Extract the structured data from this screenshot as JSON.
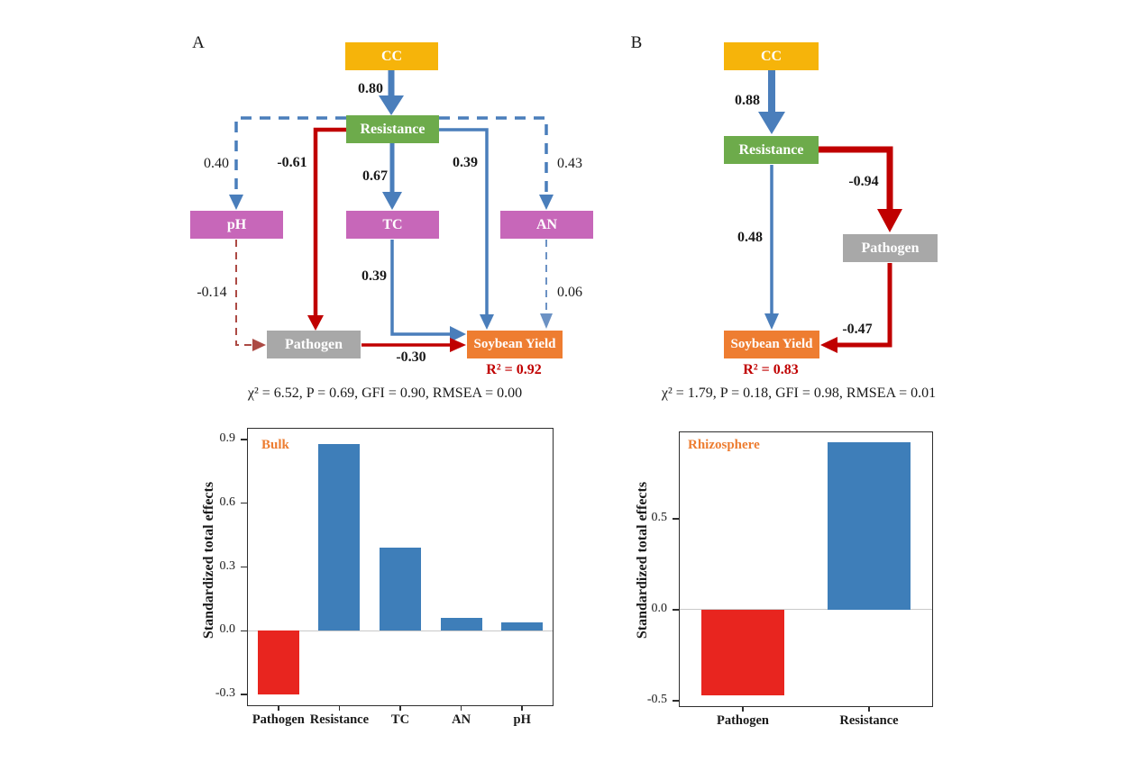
{
  "panelA": {
    "label": "A",
    "nodes": {
      "cc": "CC",
      "resistance": "Resistance",
      "ph": "pH",
      "tc": "TC",
      "an": "AN",
      "pathogen": "Pathogen",
      "soybean_yield": "Soybean Yield"
    },
    "edges": {
      "cc_resistance": "0.80",
      "resistance_ph": "0.40",
      "resistance_pathogen": "-0.61",
      "resistance_tc": "0.67",
      "resistance_soybean": "0.39",
      "resistance_an": "0.43",
      "ph_pathogen": "-0.14",
      "tc_soybean": "0.39",
      "an_soybean": "0.06",
      "pathogen_soybean": "-0.30"
    },
    "r2": "R² = 0.92",
    "fit": "χ² = 6.52,  P = 0.69, GFI = 0.90, RMSEA = 0.00"
  },
  "panelB": {
    "label": "B",
    "nodes": {
      "cc": "CC",
      "resistance": "Resistance",
      "pathogen": "Pathogen",
      "soybean_yield": "Soybean Yield"
    },
    "edges": {
      "cc_resistance": "0.88",
      "resistance_pathogen": "-0.94",
      "resistance_soybean": "0.48",
      "pathogen_soybean": "-0.47"
    },
    "r2": "R² = 0.83",
    "fit": "χ²  = 1.79,  P = 0.18, GFI = 0.98, RMSEA = 0.01"
  },
  "colors": {
    "cc_node": "#F6B40A",
    "resistance_node": "#6DAB4B",
    "soil_property_node": "#C767B9",
    "pathogen_node": "#A8A8A8",
    "yield_node": "#EE7D31",
    "positive_path_blue": "#4A7EBB",
    "negative_path_red": "#C00000",
    "nonsignificant_blue": "#6C92C4",
    "nonsignificant_red": "#AC4A44",
    "r2_text": "#C00000",
    "chart_title_orange": "#ED7D31",
    "bar_blue": "#3E7EB9",
    "bar_red": "#E8251F"
  },
  "chart_data": [
    {
      "type": "bar",
      "title": "Bulk",
      "categories": [
        "Pathogen",
        "Resistance",
        "TC",
        "AN",
        "pH"
      ],
      "values": [
        -0.3,
        0.88,
        0.39,
        0.06,
        0.04
      ],
      "bar_colors": [
        "#E8251F",
        "#3E7EB9",
        "#3E7EB9",
        "#3E7EB9",
        "#3E7EB9"
      ],
      "xlabel": "",
      "ylabel": "Standardized total effects",
      "yticks": [
        -0.3,
        0.0,
        0.3,
        0.6,
        0.9
      ],
      "ylim": [
        -0.35,
        0.95
      ],
      "grid": false,
      "legend_position": "top-left-inside"
    },
    {
      "type": "bar",
      "title": "Rhizosphere",
      "categories": [
        "Pathogen",
        "Resistance"
      ],
      "values": [
        -0.47,
        0.92
      ],
      "bar_colors": [
        "#E8251F",
        "#3E7EB9"
      ],
      "xlabel": "",
      "ylabel": "Standardized total effects",
      "yticks": [
        -0.5,
        0.0,
        0.5
      ],
      "ylim": [
        -0.53,
        0.975
      ],
      "grid": false,
      "legend_position": "top-left-inside"
    }
  ]
}
